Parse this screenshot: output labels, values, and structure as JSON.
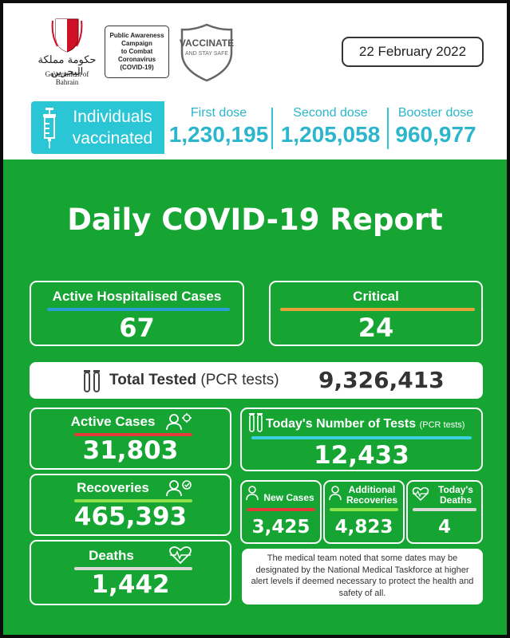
{
  "header": {
    "government_arabic": "حكومة مملكة البحرين",
    "government_label": "Government of Bahrain",
    "campaign_lines": [
      "Public Awareness",
      "Campaign",
      "to Combat",
      "Coronavirus",
      "(COVID-19)"
    ],
    "vaccinate_title": "VACCINATE",
    "vaccinate_subtitle": "AND STAY SAFE",
    "date": "22 February 2022"
  },
  "vaccination": {
    "title_line1": "Individuals",
    "title_line2": "vaccinated",
    "first_dose_label": "First dose",
    "first_dose_value": "1,230,195",
    "second_dose_label": "Second dose",
    "second_dose_value": "1,205,058",
    "booster_dose_label": "Booster dose",
    "booster_dose_value": "960,977"
  },
  "report_title": "Daily COVID-19 Report",
  "hospitalised": {
    "label": "Active Hospitalised Cases",
    "value": "67"
  },
  "critical": {
    "label": "Critical",
    "value": "24"
  },
  "total_tested": {
    "label_bold": "Total Tested",
    "label_suffix": "(PCR tests)",
    "value": "9,326,413"
  },
  "active_cases": {
    "label": "Active Cases",
    "value": "31,803"
  },
  "recoveries": {
    "label": "Recoveries",
    "value": "465,393"
  },
  "deaths": {
    "label": "Deaths",
    "value": "1,442"
  },
  "todays_tests": {
    "label": "Today's Number of Tests",
    "label_suffix": "(PCR tests)",
    "value": "12,433"
  },
  "new_cases": {
    "label": "New Cases",
    "value": "3,425"
  },
  "additional_recoveries": {
    "label_line1": "Additional",
    "label_line2": "Recoveries",
    "value": "4,823"
  },
  "todays_deaths": {
    "label_line1": "Today's",
    "label_line2": "Deaths",
    "value": "4"
  },
  "note": "The medical team noted that some dates may be designated by the National Medical Taskforce at higher alert levels if deemed necessary to protect the health and safety of all.",
  "colors": {
    "background_green": "#16a533",
    "vaccination_cyan": "#2bc6d6",
    "bar_blue": "#2a9fd6",
    "bar_orange": "#e8a13a",
    "bar_red": "#e23b3b",
    "bar_lime": "#8fe24a",
    "bar_grey": "#d9d9d9",
    "bar_cyan": "#3dd0e0"
  }
}
